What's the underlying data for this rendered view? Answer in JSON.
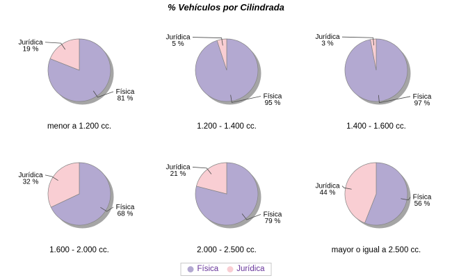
{
  "title": "% Vehículos por Cilindrada",
  "legend": {
    "items": [
      {
        "label": "Física",
        "color": "#b3a9d1"
      },
      {
        "label": "Jurídica",
        "color": "#f9ced3"
      }
    ]
  },
  "chart_data": {
    "type": "pie",
    "title": "% Vehículos por Cilindrada",
    "series_names": [
      "Física",
      "Jurídica"
    ],
    "colors": [
      "#b3a9d1",
      "#f9ced3"
    ],
    "value_suffix": " %",
    "start_angle": "12-oclock",
    "direction": "clockwise",
    "legend_position": "bottom-center",
    "shadow_color": "#a5a5a5",
    "slice_stroke_color": "#848484",
    "leader_line_color": "#4a4a4a",
    "pies": [
      {
        "label": "menor a 1.200 cc.",
        "values": [
          81,
          19
        ]
      },
      {
        "label": "1.200 - 1.400 cc.",
        "values": [
          95,
          5
        ]
      },
      {
        "label": "1.400 - 1.600 cc.",
        "values": [
          97,
          3
        ]
      },
      {
        "label": "1.600 - 2.000 cc.",
        "values": [
          68,
          32
        ]
      },
      {
        "label": "2.000 - 2.500 cc.",
        "values": [
          79,
          21
        ]
      },
      {
        "label": "mayor o igual a 2.500 cc.",
        "values": [
          56,
          44
        ]
      }
    ]
  }
}
